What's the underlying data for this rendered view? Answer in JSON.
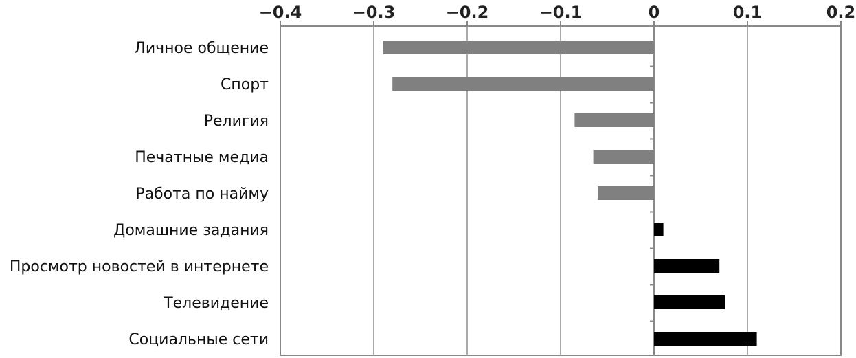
{
  "chart_data": {
    "type": "bar",
    "orientation": "horizontal",
    "title": "",
    "xlabel": "",
    "ylabel": "",
    "xlim": [
      -0.4,
      0.2
    ],
    "x_ticks": [
      -0.4,
      -0.3,
      -0.2,
      -0.1,
      0,
      0.1,
      0.2
    ],
    "x_tick_labels": [
      "−0.4",
      "−0.3",
      "−0.2",
      "−0.1",
      "0",
      "0.1",
      "0.2"
    ],
    "x_axis_position": "top",
    "grid": "vertical",
    "categories": [
      "Личное общение",
      "Спорт",
      "Религия",
      "Печатные медиа",
      "Работа по найму",
      "Домашние задания",
      "Просмотр новостей в интернете",
      "Телевидение",
      "Социальные сети"
    ],
    "values": [
      -0.29,
      -0.28,
      -0.085,
      -0.065,
      -0.06,
      0.01,
      0.07,
      0.076,
      0.11
    ],
    "colors": {
      "negative": "#808080",
      "positive": "#000000",
      "grid": "#aaaaaa",
      "frame": "#888888"
    }
  }
}
